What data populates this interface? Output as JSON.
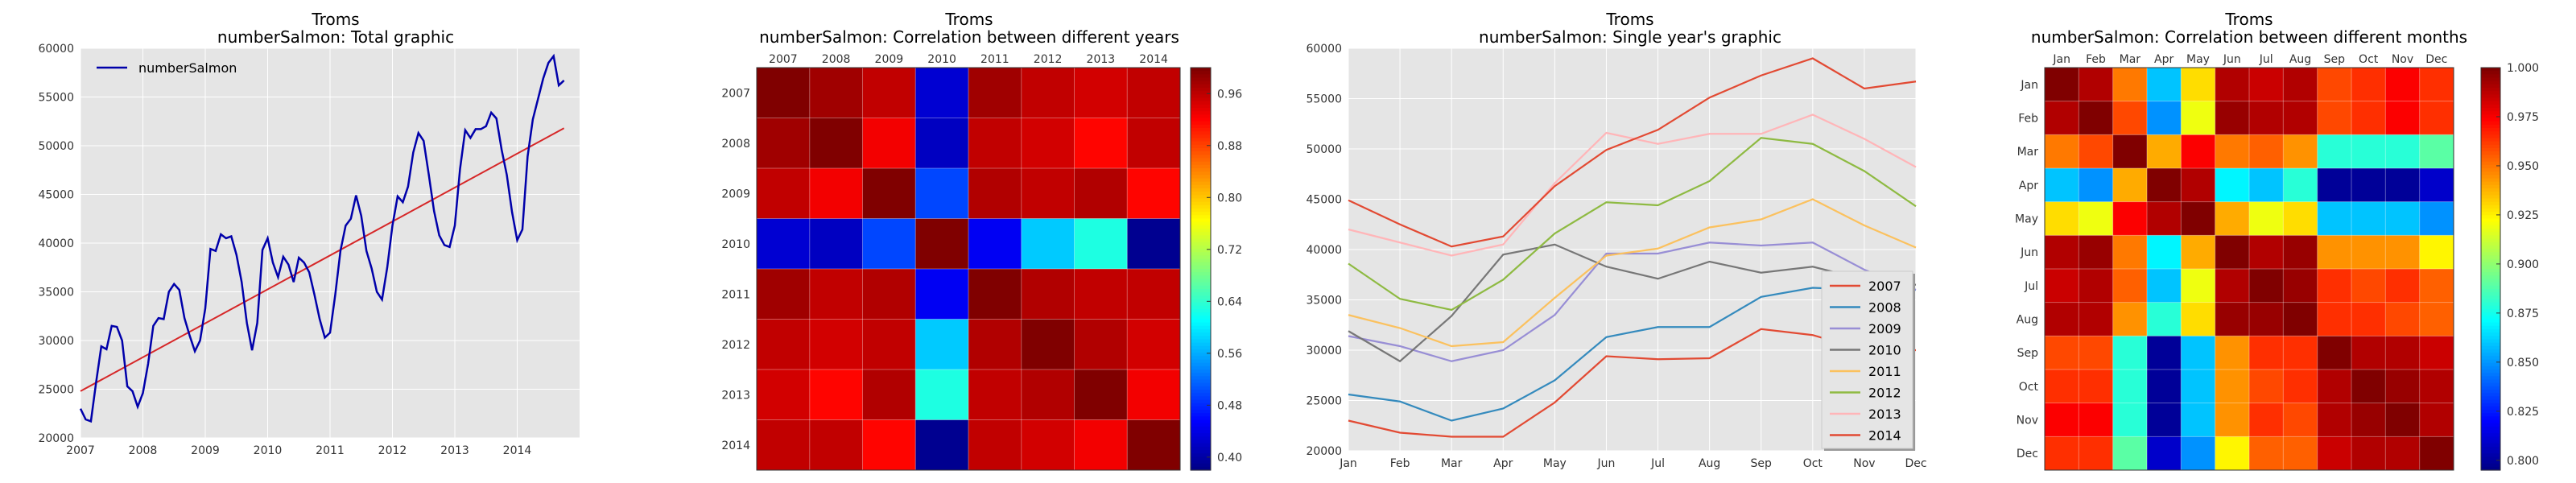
{
  "chart_data": [
    {
      "type": "line",
      "title": "Troms",
      "subtitle": "numberSalmon: Total graphic",
      "xlabel": "",
      "ylabel": "",
      "ylim": [
        20000,
        60000
      ],
      "xlim": [
        2007,
        2015
      ],
      "grid": true,
      "legend_position": "top-left",
      "x_ticks": [
        "2007",
        "2008",
        "2009",
        "2010",
        "2011",
        "2012",
        "2013",
        "2014"
      ],
      "y_ticks": [
        "20000",
        "25000",
        "30000",
        "35000",
        "40000",
        "45000",
        "50000",
        "55000",
        "60000"
      ],
      "series": [
        {
          "name": "numberSalmon",
          "color": "#0000aa",
          "values": [
            23000,
            21900,
            21700,
            25700,
            29400,
            29100,
            31500,
            31400,
            30000,
            25300,
            24800,
            23200,
            24600,
            27600,
            31500,
            32300,
            32200,
            35000,
            35800,
            35200,
            32300,
            30500,
            28900,
            30000,
            33300,
            39400,
            39200,
            40900,
            40500,
            40700,
            38800,
            36000,
            31800,
            29000,
            31800,
            39300,
            40500,
            38000,
            36500,
            38600,
            37800,
            36000,
            38500,
            38000,
            37000,
            34700,
            32200,
            30300,
            30800,
            34700,
            39200,
            41800,
            42500,
            44900,
            42800,
            39200,
            37400,
            35000,
            34200,
            37500,
            41800,
            44800,
            44200,
            45800,
            49300,
            51300,
            50500,
            47000,
            43300,
            40800,
            39800,
            39600,
            41800,
            47600,
            51600,
            50800,
            51700,
            51700,
            52000,
            53400,
            52800,
            49600,
            47000,
            43200,
            40300,
            41400,
            48900,
            52700,
            54800,
            56900,
            58500,
            59200,
            56200,
            56700
          ]
        }
      ],
      "trend": {
        "color": "#d62728",
        "start": 24800,
        "end": 51800
      }
    },
    {
      "type": "heatmap",
      "title": "Troms",
      "subtitle": "numberSalmon: Correlation between different years",
      "labels": [
        "2007",
        "2008",
        "2009",
        "2010",
        "2011",
        "2012",
        "2013",
        "2014"
      ],
      "colorbar_min": 0.38,
      "colorbar_max": 1.0,
      "colorbar_ticks": [
        "0.40",
        "0.48",
        "0.56",
        "0.64",
        "0.72",
        "0.80",
        "0.88",
        "0.96"
      ],
      "matrix": [
        [
          1.0,
          0.98,
          0.96,
          0.43,
          0.98,
          0.96,
          0.95,
          0.96
        ],
        [
          0.98,
          1.0,
          0.93,
          0.42,
          0.96,
          0.95,
          0.92,
          0.96
        ],
        [
          0.96,
          0.93,
          1.0,
          0.5,
          0.97,
          0.96,
          0.97,
          0.92
        ],
        [
          0.43,
          0.42,
          0.5,
          1.0,
          0.45,
          0.58,
          0.63,
          0.39
        ],
        [
          0.98,
          0.96,
          0.97,
          0.45,
          1.0,
          0.97,
          0.96,
          0.96
        ],
        [
          0.96,
          0.95,
          0.96,
          0.58,
          0.97,
          1.0,
          0.97,
          0.95
        ],
        [
          0.95,
          0.92,
          0.97,
          0.63,
          0.96,
          0.97,
          1.0,
          0.93
        ],
        [
          0.96,
          0.96,
          0.92,
          0.39,
          0.96,
          0.95,
          0.93,
          1.0
        ]
      ]
    },
    {
      "type": "line",
      "title": "Troms",
      "subtitle": "numberSalmon: Single year's graphic",
      "xlabel": "",
      "ylabel": "",
      "ylim": [
        20000,
        60000
      ],
      "grid": true,
      "legend_position": "bottom-right",
      "categories": [
        "Jan",
        "Feb",
        "Mar",
        "Apr",
        "May",
        "Jun",
        "Jul",
        "Aug",
        "Sep",
        "Oct",
        "Nov",
        "Dec"
      ],
      "y_ticks": [
        "20000",
        "25000",
        "30000",
        "35000",
        "40000",
        "45000",
        "50000",
        "55000",
        "60000"
      ],
      "series": [
        {
          "name": "2007",
          "color": "#e24a33",
          "values": [
            23000,
            21800,
            21400,
            21400,
            24800,
            29400,
            29100,
            29200,
            32100,
            31500,
            30000,
            30000
          ]
        },
        {
          "name": "2008",
          "color": "#348abd",
          "values": [
            25600,
            24900,
            23000,
            24200,
            27000,
            31300,
            32300,
            32300,
            35300,
            36200,
            36000,
            36000
          ]
        },
        {
          "name": "2009",
          "color": "#988ed5",
          "values": [
            31400,
            30400,
            28900,
            30000,
            33500,
            39600,
            39600,
            40700,
            40400,
            40700,
            38000,
            36000
          ]
        },
        {
          "name": "2010",
          "color": "#777777",
          "values": [
            31900,
            28900,
            33400,
            39500,
            40500,
            38300,
            37100,
            38800,
            37700,
            38300,
            37000,
            36500
          ]
        },
        {
          "name": "2011",
          "color": "#fbc15e",
          "values": [
            33500,
            32200,
            30400,
            30800,
            35200,
            39400,
            40100,
            42200,
            43000,
            45000,
            42400,
            40200
          ]
        },
        {
          "name": "2012",
          "color": "#8eba42",
          "values": [
            38600,
            35100,
            34000,
            37000,
            41600,
            44700,
            44400,
            46800,
            51100,
            50500,
            47800,
            44300
          ]
        },
        {
          "name": "2013",
          "color": "#ffb5b8",
          "values": [
            42000,
            40700,
            39400,
            40500,
            46600,
            51600,
            50500,
            51500,
            51500,
            53400,
            51000,
            48200
          ]
        },
        {
          "name": "2014",
          "color": "#e24a33",
          "values": [
            44900,
            42500,
            40300,
            41300,
            46300,
            49900,
            51900,
            55100,
            57300,
            59000,
            56000,
            56700
          ]
        }
      ]
    },
    {
      "type": "heatmap",
      "title": "Troms",
      "subtitle": "numberSalmon: Correlation between different months",
      "labels": [
        "Jan",
        "Feb",
        "Mar",
        "Apr",
        "May",
        "Jun",
        "Jul",
        "Aug",
        "Sep",
        "Oct",
        "Nov",
        "Dec"
      ],
      "colorbar_min": 0.795,
      "colorbar_max": 1.0,
      "colorbar_ticks": [
        "0.800",
        "0.825",
        "0.850",
        "0.875",
        "0.900",
        "0.925",
        "0.950",
        "0.975",
        "1.000"
      ],
      "matrix": [
        [
          1.0,
          0.99,
          0.95,
          0.86,
          0.93,
          0.99,
          0.985,
          0.99,
          0.96,
          0.965,
          0.975,
          0.965
        ],
        [
          0.99,
          1.0,
          0.96,
          0.85,
          0.92,
          0.995,
          0.99,
          0.99,
          0.96,
          0.965,
          0.975,
          0.965
        ],
        [
          0.95,
          0.96,
          1.0,
          0.94,
          0.975,
          0.95,
          0.955,
          0.945,
          0.88,
          0.88,
          0.88,
          0.89
        ],
        [
          0.86,
          0.85,
          0.94,
          1.0,
          0.99,
          0.87,
          0.86,
          0.88,
          0.8,
          0.8,
          0.8,
          0.81
        ],
        [
          0.93,
          0.92,
          0.975,
          0.99,
          1.0,
          0.94,
          0.92,
          0.93,
          0.86,
          0.86,
          0.86,
          0.85
        ],
        [
          0.99,
          0.995,
          0.95,
          0.87,
          0.94,
          1.0,
          0.99,
          0.995,
          0.945,
          0.945,
          0.945,
          0.925
        ],
        [
          0.985,
          0.99,
          0.955,
          0.86,
          0.92,
          0.99,
          1.0,
          0.995,
          0.965,
          0.96,
          0.965,
          0.955
        ],
        [
          0.99,
          0.99,
          0.945,
          0.88,
          0.93,
          0.995,
          0.995,
          1.0,
          0.965,
          0.965,
          0.96,
          0.955
        ],
        [
          0.96,
          0.96,
          0.88,
          0.8,
          0.86,
          0.945,
          0.965,
          0.965,
          1.0,
          0.99,
          0.99,
          0.985
        ],
        [
          0.965,
          0.965,
          0.88,
          0.8,
          0.86,
          0.945,
          0.96,
          0.965,
          0.99,
          1.0,
          0.995,
          0.99
        ],
        [
          0.975,
          0.975,
          0.88,
          0.8,
          0.86,
          0.945,
          0.965,
          0.96,
          0.99,
          0.995,
          1.0,
          0.99
        ],
        [
          0.965,
          0.965,
          0.89,
          0.81,
          0.85,
          0.925,
          0.955,
          0.955,
          0.985,
          0.99,
          0.99,
          1.0
        ]
      ]
    }
  ]
}
